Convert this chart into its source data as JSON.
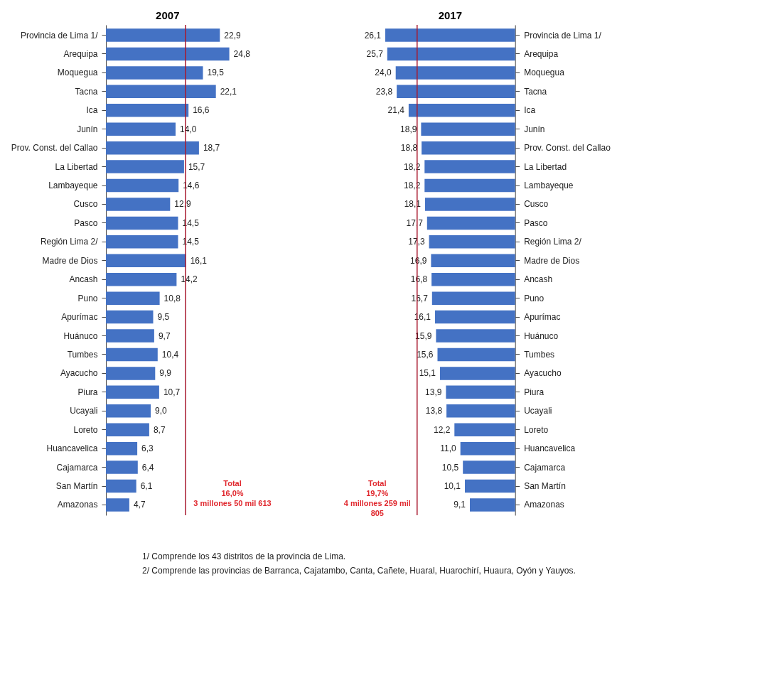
{
  "chart_data": [
    {
      "type": "bar",
      "orientation": "horizontal",
      "title": "2007",
      "categories": [
        "Provincia de Lima 1/",
        "Arequipa",
        "Moquegua",
        "Tacna",
        "Ica",
        "Junín",
        "Prov. Const. del Callao",
        "La Libertad",
        "Lambayeque",
        "Cusco",
        "Pasco",
        "Región Lima 2/",
        "Madre de Dios",
        "Ancash",
        "Puno",
        "Apurímac",
        "Huánuco",
        "Tumbes",
        "Ayacucho",
        "Piura",
        "Ucayali",
        "Loreto",
        "Huancavelica",
        "Cajamarca",
        "San Martín",
        "Amazonas"
      ],
      "values": [
        22.9,
        24.8,
        19.5,
        22.1,
        16.6,
        14.0,
        18.7,
        15.7,
        14.6,
        12.9,
        14.5,
        14.5,
        16.1,
        14.2,
        10.8,
        9.5,
        9.7,
        10.4,
        9.9,
        10.7,
        9.0,
        8.7,
        6.3,
        6.4,
        6.1,
        4.7
      ],
      "value_labels": [
        "22,9",
        "24,8",
        "19,5",
        "22,1",
        "16,6",
        "14,0",
        "18,7",
        "15,7",
        "14,6",
        "12,9",
        "14,5",
        "14,5",
        "16,1",
        "14,2",
        "10,8",
        "9,5",
        "9,7",
        "10,4",
        "9,9",
        "10,7",
        "9,0",
        "8,7",
        "6,3",
        "6,4",
        "6,1",
        "4,7"
      ],
      "color": "#4472c4",
      "xlim": [
        0,
        24.8
      ],
      "tick_labels": "y",
      "ref_lines": [
        {
          "axis": "x",
          "value": 16.0,
          "label": "Total\n16,0%\n3 millones 50 mil 613",
          "color": "#a8192e"
        }
      ],
      "annotations": [
        "1/ Comprende los 43 distritos de la provincia de Lima.",
        "2/ Comprende las provincias de Barranca, Cajatambo, Canta, Cañete, Huaral, Huarochirí, Huaura, Oyón y Yauyos."
      ]
    },
    {
      "type": "bar",
      "orientation": "horizontal",
      "title": "2017",
      "categories": [
        "Provincia de Lima 1/",
        "Arequipa",
        "Moquegua",
        "Tacna",
        "Ica",
        "Junín",
        "Prov. Const. del Callao",
        "La Libertad",
        "Lambayeque",
        "Cusco",
        "Pasco",
        "Región Lima 2/",
        "Madre de Dios",
        "Ancash",
        "Puno",
        "Apurímac",
        "Huánuco",
        "Tumbes",
        "Ayacucho",
        "Piura",
        "Ucayali",
        "Loreto",
        "Huancavelica",
        "Cajamarca",
        "San Martín",
        "Amazonas"
      ],
      "values": [
        26.1,
        25.7,
        24.0,
        23.8,
        21.4,
        18.9,
        18.8,
        18.2,
        18.2,
        18.1,
        17.7,
        17.3,
        16.9,
        16.8,
        16.7,
        16.1,
        15.9,
        15.6,
        15.1,
        13.9,
        13.8,
        12.2,
        11.0,
        10.5,
        10.1,
        9.1
      ],
      "value_labels": [
        "26,1",
        "25,7",
        "24,0",
        "23,8",
        "21,4",
        "18,9",
        "18,8",
        "18,2",
        "18,2",
        "18,1",
        "17,7",
        "17,3",
        "16,9",
        "16,8",
        "16,7",
        "16,1",
        "15,9",
        "15,6",
        "15,1",
        "13,9",
        "13,8",
        "12,2",
        "11,0",
        "10,5",
        "10,1",
        "9,1"
      ],
      "color": "#4472c4",
      "xlim": [
        26.1,
        0
      ],
      "tick_labels": "y",
      "ref_lines": [
        {
          "axis": "x",
          "value": 19.7,
          "label": "Total\n19,7%\n4 millones 259 mil\n805",
          "color": "#a8192e"
        }
      ]
    }
  ]
}
